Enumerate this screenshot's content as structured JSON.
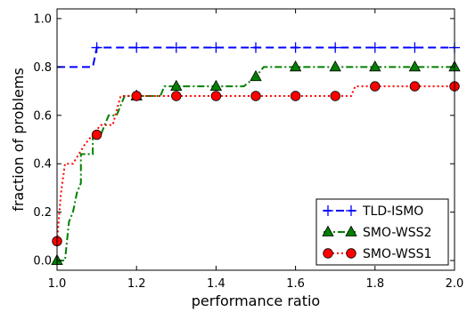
{
  "chart_data": {
    "type": "line",
    "xlabel": "performance ratio",
    "ylabel": "fraction of problems",
    "xlim": [
      1.0,
      2.0
    ],
    "ylim": [
      -0.04,
      1.04
    ],
    "xticks": [
      1.0,
      1.2,
      1.4,
      1.6,
      1.8,
      2.0
    ],
    "xtick_labels": [
      "1.0",
      "1.2",
      "1.4",
      "1.6",
      "1.8",
      "2.0"
    ],
    "yticks": [
      0.0,
      0.2,
      0.4,
      0.6,
      0.8,
      1.0
    ],
    "ytick_labels": [
      "0.0",
      "0.2",
      "0.4",
      "0.6",
      "0.8",
      "1.0"
    ],
    "grid": false,
    "legend_position": "bottom-right",
    "series": [
      {
        "name": "TLD-ISMO",
        "color": "#0000ff",
        "line_style": "dashed",
        "marker": "plus",
        "curve": [
          [
            1.0,
            0.8
          ],
          [
            1.09,
            0.8
          ],
          [
            1.1,
            0.88
          ],
          [
            2.0,
            0.88
          ]
        ],
        "markers": [
          [
            1.1,
            0.88
          ],
          [
            1.2,
            0.88
          ],
          [
            1.3,
            0.88
          ],
          [
            1.4,
            0.88
          ],
          [
            1.5,
            0.88
          ],
          [
            1.6,
            0.88
          ],
          [
            1.7,
            0.88
          ],
          [
            1.8,
            0.88
          ],
          [
            1.9,
            0.88
          ],
          [
            2.0,
            0.88
          ]
        ]
      },
      {
        "name": "SMO-WSS2",
        "color": "#008000",
        "line_style": "dashdot",
        "marker": "triangle",
        "curve": [
          [
            1.0,
            0.0
          ],
          [
            1.02,
            0.0
          ],
          [
            1.03,
            0.16
          ],
          [
            1.04,
            0.2
          ],
          [
            1.05,
            0.28
          ],
          [
            1.06,
            0.32
          ],
          [
            1.06,
            0.44
          ],
          [
            1.09,
            0.44
          ],
          [
            1.09,
            0.52
          ],
          [
            1.11,
            0.52
          ],
          [
            1.13,
            0.6
          ],
          [
            1.15,
            0.6
          ],
          [
            1.17,
            0.68
          ],
          [
            1.26,
            0.68
          ],
          [
            1.27,
            0.72
          ],
          [
            1.47,
            0.72
          ],
          [
            1.5,
            0.76
          ],
          [
            1.52,
            0.8
          ],
          [
            2.0,
            0.8
          ]
        ],
        "markers": [
          [
            1.0,
            0.0
          ],
          [
            1.2,
            0.68
          ],
          [
            1.3,
            0.72
          ],
          [
            1.4,
            0.72
          ],
          [
            1.5,
            0.76
          ],
          [
            1.6,
            0.8
          ],
          [
            1.7,
            0.8
          ],
          [
            1.8,
            0.8
          ],
          [
            1.9,
            0.8
          ],
          [
            2.0,
            0.8
          ]
        ]
      },
      {
        "name": "SMO-WSS1",
        "color": "#ff0000",
        "line_style": "dotted",
        "marker": "circle",
        "curve": [
          [
            1.0,
            0.08
          ],
          [
            1.01,
            0.28
          ],
          [
            1.02,
            0.4
          ],
          [
            1.04,
            0.4
          ],
          [
            1.07,
            0.48
          ],
          [
            1.09,
            0.52
          ],
          [
            1.11,
            0.56
          ],
          [
            1.14,
            0.56
          ],
          [
            1.16,
            0.68
          ],
          [
            1.74,
            0.68
          ],
          [
            1.75,
            0.72
          ],
          [
            2.0,
            0.72
          ]
        ],
        "markers": [
          [
            1.0,
            0.08
          ],
          [
            1.1,
            0.52
          ],
          [
            1.2,
            0.68
          ],
          [
            1.3,
            0.68
          ],
          [
            1.4,
            0.68
          ],
          [
            1.5,
            0.68
          ],
          [
            1.6,
            0.68
          ],
          [
            1.7,
            0.68
          ],
          [
            1.8,
            0.72
          ],
          [
            1.9,
            0.72
          ],
          [
            2.0,
            0.72
          ]
        ]
      }
    ]
  }
}
